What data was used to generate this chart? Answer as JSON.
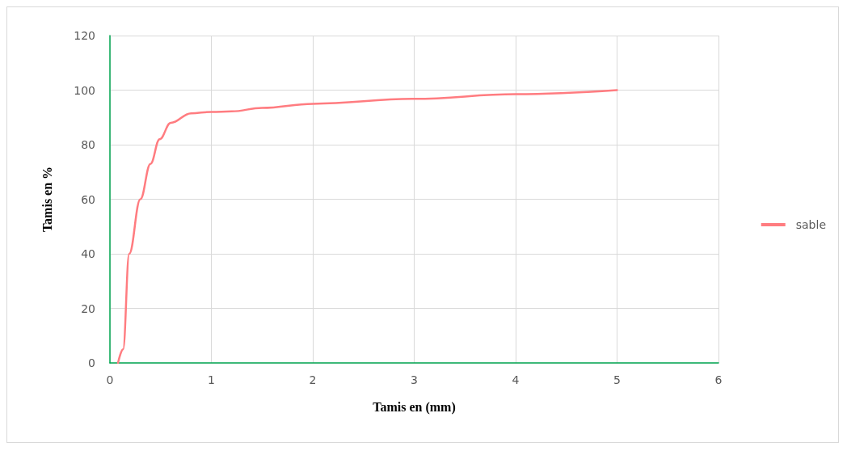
{
  "chart_data": {
    "type": "line",
    "xlabel": "Tamis en (mm)",
    "ylabel": "Tamis en %",
    "xlim": [
      0,
      6
    ],
    "xticks": [
      0,
      1,
      2,
      3,
      4,
      5,
      6
    ],
    "ylim": [
      0,
      120
    ],
    "yticks": [
      0,
      20,
      40,
      60,
      80,
      100,
      120
    ],
    "grid": true,
    "legend": "right",
    "marker": "none",
    "line_style": "solid",
    "series": [
      {
        "name": "sable",
        "color": "#ff7c80",
        "x": [
          0.08,
          0.13,
          0.19,
          0.3,
          0.4,
          0.49,
          0.6,
          0.8,
          1,
          1.2,
          1.5,
          2,
          3,
          4,
          5
        ],
        "values": [
          0,
          5,
          40,
          60,
          73,
          82,
          88,
          91.5,
          92,
          92.2,
          93.5,
          95,
          96.8,
          98.5,
          100
        ]
      }
    ]
  }
}
